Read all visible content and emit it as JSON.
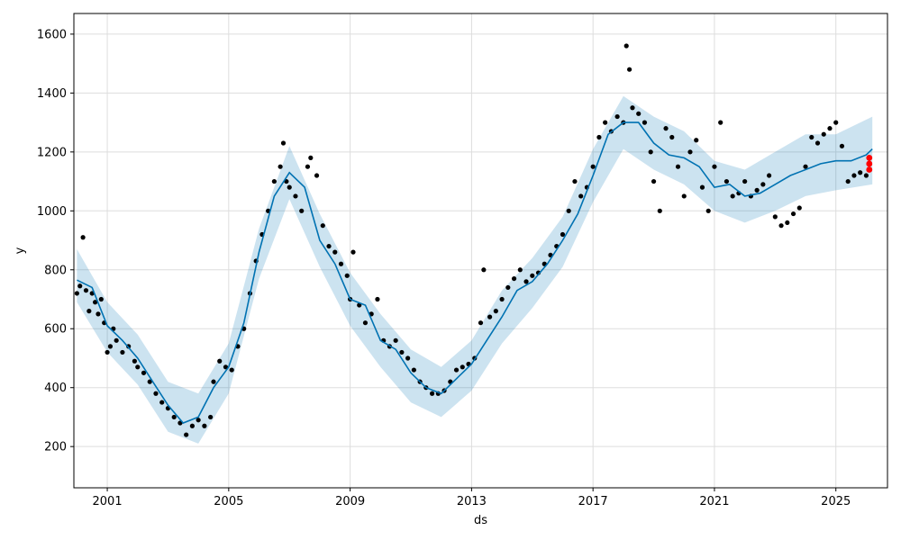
{
  "chart_data": {
    "type": "scatter",
    "title": "",
    "xlabel": "ds",
    "ylabel": "y",
    "x_tick_labels": [
      "2001",
      "2005",
      "2009",
      "2013",
      "2017",
      "2021",
      "2025"
    ],
    "x_ticks": [
      2001,
      2005,
      2009,
      2013,
      2017,
      2021,
      2025
    ],
    "y_tick_labels": [
      "200",
      "400",
      "600",
      "800",
      "1000",
      "1200",
      "1400",
      "1600"
    ],
    "y_ticks": [
      200,
      400,
      600,
      800,
      1000,
      1200,
      1400,
      1600
    ],
    "xlim": [
      1999.9,
      2026.7
    ],
    "ylim": [
      60,
      1670
    ],
    "grid": true,
    "colors": {
      "observed": "#000000",
      "forecast_line": "#0072B2",
      "uncertainty_band": "#0072B2",
      "highlight_points": "#ff0000",
      "grid": "#dddddd"
    },
    "series": [
      {
        "role": "observed",
        "points": [
          [
            2000.0,
            720
          ],
          [
            2000.1,
            745
          ],
          [
            2000.2,
            910
          ],
          [
            2000.3,
            730
          ],
          [
            2000.4,
            660
          ],
          [
            2000.5,
            720
          ],
          [
            2000.6,
            690
          ],
          [
            2000.7,
            650
          ],
          [
            2000.8,
            700
          ],
          [
            2000.9,
            620
          ],
          [
            2001.0,
            520
          ],
          [
            2001.1,
            540
          ],
          [
            2001.2,
            600
          ],
          [
            2001.3,
            560
          ],
          [
            2001.5,
            520
          ],
          [
            2001.7,
            540
          ],
          [
            2001.9,
            490
          ],
          [
            2002.0,
            470
          ],
          [
            2002.2,
            450
          ],
          [
            2002.4,
            420
          ],
          [
            2002.6,
            380
          ],
          [
            2002.8,
            350
          ],
          [
            2003.0,
            330
          ],
          [
            2003.2,
            300
          ],
          [
            2003.4,
            280
          ],
          [
            2003.6,
            240
          ],
          [
            2003.8,
            270
          ],
          [
            2004.0,
            290
          ],
          [
            2004.2,
            270
          ],
          [
            2004.4,
            300
          ],
          [
            2004.5,
            420
          ],
          [
            2004.7,
            490
          ],
          [
            2004.9,
            470
          ],
          [
            2005.1,
            460
          ],
          [
            2005.3,
            540
          ],
          [
            2005.5,
            600
          ],
          [
            2005.7,
            720
          ],
          [
            2005.9,
            830
          ],
          [
            2006.1,
            920
          ],
          [
            2006.3,
            1000
          ],
          [
            2006.5,
            1100
          ],
          [
            2006.7,
            1150
          ],
          [
            2006.8,
            1230
          ],
          [
            2006.9,
            1100
          ],
          [
            2007.0,
            1080
          ],
          [
            2007.2,
            1050
          ],
          [
            2007.4,
            1000
          ],
          [
            2007.6,
            1150
          ],
          [
            2007.7,
            1180
          ],
          [
            2007.9,
            1120
          ],
          [
            2008.1,
            950
          ],
          [
            2008.3,
            880
          ],
          [
            2008.5,
            860
          ],
          [
            2008.7,
            820
          ],
          [
            2008.9,
            780
          ],
          [
            2009.0,
            700
          ],
          [
            2009.1,
            860
          ],
          [
            2009.3,
            680
          ],
          [
            2009.5,
            620
          ],
          [
            2009.7,
            650
          ],
          [
            2009.9,
            700
          ],
          [
            2010.1,
            560
          ],
          [
            2010.3,
            540
          ],
          [
            2010.5,
            560
          ],
          [
            2010.7,
            520
          ],
          [
            2010.9,
            500
          ],
          [
            2011.1,
            460
          ],
          [
            2011.3,
            420
          ],
          [
            2011.5,
            400
          ],
          [
            2011.7,
            380
          ],
          [
            2011.9,
            380
          ],
          [
            2012.1,
            390
          ],
          [
            2012.3,
            420
          ],
          [
            2012.5,
            460
          ],
          [
            2012.7,
            470
          ],
          [
            2012.9,
            480
          ],
          [
            2013.1,
            500
          ],
          [
            2013.3,
            620
          ],
          [
            2013.4,
            800
          ],
          [
            2013.6,
            640
          ],
          [
            2013.8,
            660
          ],
          [
            2014.0,
            700
          ],
          [
            2014.2,
            740
          ],
          [
            2014.4,
            770
          ],
          [
            2014.6,
            800
          ],
          [
            2014.8,
            760
          ],
          [
            2015.0,
            780
          ],
          [
            2015.2,
            790
          ],
          [
            2015.4,
            820
          ],
          [
            2015.6,
            850
          ],
          [
            2015.8,
            880
          ],
          [
            2016.0,
            920
          ],
          [
            2016.2,
            1000
          ],
          [
            2016.4,
            1100
          ],
          [
            2016.6,
            1050
          ],
          [
            2016.8,
            1080
          ],
          [
            2017.0,
            1150
          ],
          [
            2017.2,
            1250
          ],
          [
            2017.4,
            1300
          ],
          [
            2017.6,
            1270
          ],
          [
            2017.8,
            1320
          ],
          [
            2018.0,
            1300
          ],
          [
            2018.1,
            1560
          ],
          [
            2018.2,
            1480
          ],
          [
            2018.3,
            1350
          ],
          [
            2018.5,
            1330
          ],
          [
            2018.7,
            1300
          ],
          [
            2018.9,
            1200
          ],
          [
            2019.0,
            1100
          ],
          [
            2019.2,
            1000
          ],
          [
            2019.4,
            1280
          ],
          [
            2019.6,
            1250
          ],
          [
            2019.8,
            1150
          ],
          [
            2020.0,
            1050
          ],
          [
            2020.2,
            1200
          ],
          [
            2020.4,
            1240
          ],
          [
            2020.6,
            1080
          ],
          [
            2020.8,
            1000
          ],
          [
            2021.0,
            1150
          ],
          [
            2021.2,
            1300
          ],
          [
            2021.4,
            1100
          ],
          [
            2021.6,
            1050
          ],
          [
            2021.8,
            1060
          ],
          [
            2022.0,
            1100
          ],
          [
            2022.2,
            1050
          ],
          [
            2022.4,
            1070
          ],
          [
            2022.6,
            1090
          ],
          [
            2022.8,
            1120
          ],
          [
            2023.0,
            980
          ],
          [
            2023.2,
            950
          ],
          [
            2023.4,
            960
          ],
          [
            2023.6,
            990
          ],
          [
            2023.8,
            1010
          ],
          [
            2024.0,
            1150
          ],
          [
            2024.2,
            1250
          ],
          [
            2024.4,
            1230
          ],
          [
            2024.6,
            1260
          ],
          [
            2024.8,
            1280
          ],
          [
            2025.0,
            1300
          ],
          [
            2025.2,
            1220
          ],
          [
            2025.4,
            1100
          ],
          [
            2025.6,
            1120
          ],
          [
            2025.8,
            1130
          ],
          [
            2026.0,
            1120
          ]
        ]
      },
      {
        "role": "forecast",
        "points": [
          [
            2000.0,
            765
          ],
          [
            2000.5,
            740
          ],
          [
            2001.0,
            610
          ],
          [
            2001.5,
            560
          ],
          [
            2002.0,
            500
          ],
          [
            2002.5,
            420
          ],
          [
            2003.0,
            340
          ],
          [
            2003.5,
            280
          ],
          [
            2004.0,
            300
          ],
          [
            2004.5,
            400
          ],
          [
            2005.0,
            470
          ],
          [
            2005.5,
            620
          ],
          [
            2006.0,
            860
          ],
          [
            2006.5,
            1050
          ],
          [
            2007.0,
            1130
          ],
          [
            2007.5,
            1080
          ],
          [
            2008.0,
            900
          ],
          [
            2008.5,
            820
          ],
          [
            2009.0,
            700
          ],
          [
            2009.5,
            680
          ],
          [
            2010.0,
            560
          ],
          [
            2010.5,
            530
          ],
          [
            2011.0,
            450
          ],
          [
            2011.5,
            400
          ],
          [
            2012.0,
            380
          ],
          [
            2012.5,
            430
          ],
          [
            2013.0,
            480
          ],
          [
            2013.5,
            560
          ],
          [
            2014.0,
            640
          ],
          [
            2014.5,
            730
          ],
          [
            2015.0,
            760
          ],
          [
            2015.5,
            820
          ],
          [
            2016.0,
            900
          ],
          [
            2016.5,
            990
          ],
          [
            2017.0,
            1120
          ],
          [
            2017.5,
            1260
          ],
          [
            2018.0,
            1300
          ],
          [
            2018.5,
            1300
          ],
          [
            2019.0,
            1230
          ],
          [
            2019.5,
            1190
          ],
          [
            2020.0,
            1180
          ],
          [
            2020.5,
            1150
          ],
          [
            2021.0,
            1080
          ],
          [
            2021.5,
            1090
          ],
          [
            2022.0,
            1050
          ],
          [
            2022.5,
            1060
          ],
          [
            2023.0,
            1090
          ],
          [
            2023.5,
            1120
          ],
          [
            2024.0,
            1140
          ],
          [
            2024.5,
            1160
          ],
          [
            2025.0,
            1170
          ],
          [
            2025.5,
            1170
          ],
          [
            2026.0,
            1190
          ],
          [
            2026.2,
            1210
          ]
        ],
        "upper": [
          [
            2000.0,
            870
          ],
          [
            2001.0,
            690
          ],
          [
            2002.0,
            580
          ],
          [
            2003.0,
            420
          ],
          [
            2004.0,
            380
          ],
          [
            2005.0,
            550
          ],
          [
            2006.0,
            940
          ],
          [
            2007.0,
            1220
          ],
          [
            2008.0,
            990
          ],
          [
            2009.0,
            790
          ],
          [
            2010.0,
            650
          ],
          [
            2011.0,
            530
          ],
          [
            2012.0,
            470
          ],
          [
            2013.0,
            560
          ],
          [
            2014.0,
            730
          ],
          [
            2015.0,
            840
          ],
          [
            2016.0,
            980
          ],
          [
            2017.0,
            1210
          ],
          [
            2018.0,
            1390
          ],
          [
            2019.0,
            1320
          ],
          [
            2020.0,
            1270
          ],
          [
            2021.0,
            1170
          ],
          [
            2022.0,
            1140
          ],
          [
            2023.0,
            1200
          ],
          [
            2024.0,
            1260
          ],
          [
            2025.0,
            1260
          ],
          [
            2026.2,
            1320
          ]
        ],
        "lower": [
          [
            2000.0,
            690
          ],
          [
            2001.0,
            520
          ],
          [
            2002.0,
            410
          ],
          [
            2003.0,
            250
          ],
          [
            2004.0,
            210
          ],
          [
            2005.0,
            380
          ],
          [
            2006.0,
            770
          ],
          [
            2007.0,
            1040
          ],
          [
            2008.0,
            810
          ],
          [
            2009.0,
            610
          ],
          [
            2010.0,
            470
          ],
          [
            2011.0,
            350
          ],
          [
            2012.0,
            300
          ],
          [
            2013.0,
            390
          ],
          [
            2014.0,
            550
          ],
          [
            2015.0,
            670
          ],
          [
            2016.0,
            810
          ],
          [
            2017.0,
            1030
          ],
          [
            2018.0,
            1210
          ],
          [
            2019.0,
            1140
          ],
          [
            2020.0,
            1090
          ],
          [
            2021.0,
            1000
          ],
          [
            2022.0,
            960
          ],
          [
            2023.0,
            1000
          ],
          [
            2024.0,
            1050
          ],
          [
            2025.0,
            1070
          ],
          [
            2026.2,
            1090
          ]
        ]
      },
      {
        "role": "highlight",
        "points": [
          [
            2026.1,
            1140
          ],
          [
            2026.1,
            1160
          ],
          [
            2026.1,
            1180
          ]
        ]
      }
    ]
  }
}
